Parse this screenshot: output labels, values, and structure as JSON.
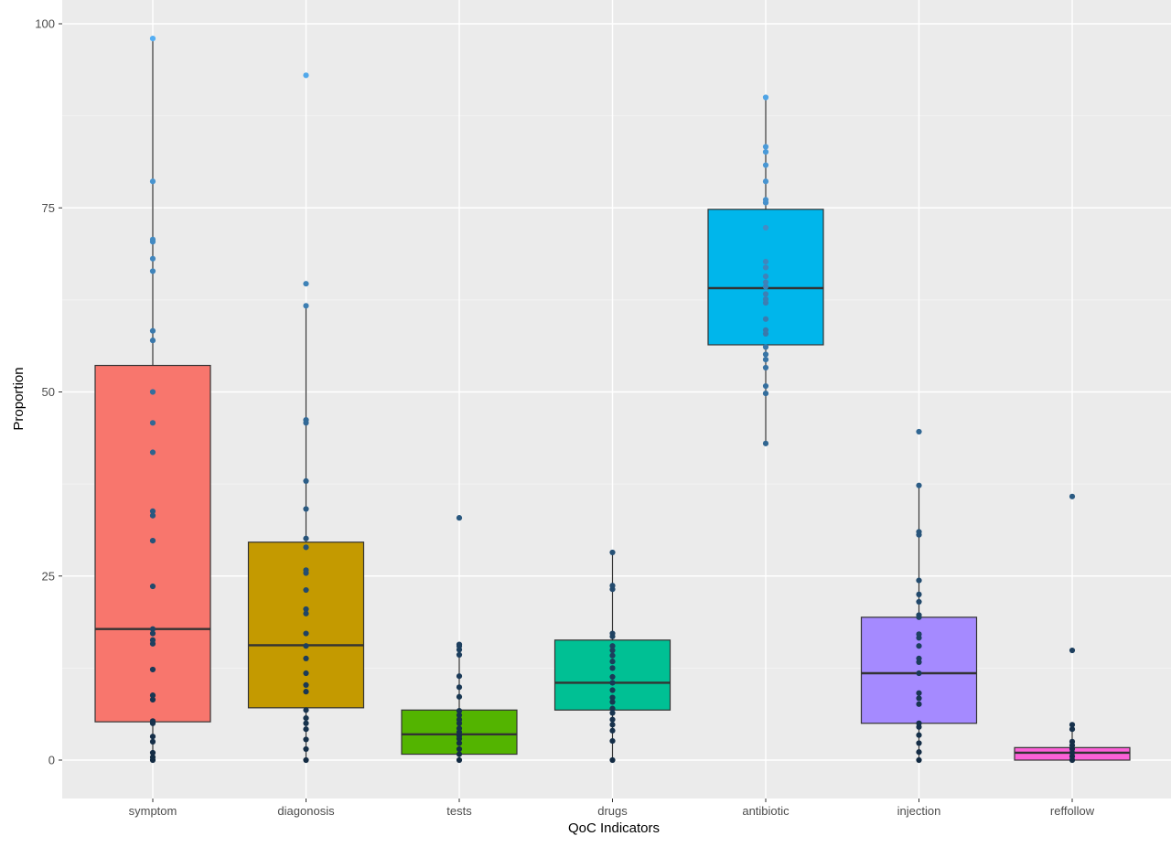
{
  "chart_data": {
    "type": "boxplot",
    "title": "",
    "xlabel": "QoC Indicators",
    "ylabel": "Proportion",
    "ylim": [
      -5,
      101
    ],
    "yticks": [
      0,
      25,
      50,
      75,
      100
    ],
    "grid": true,
    "legend": "none",
    "categories": [
      "symptom",
      "diagonosis",
      "tests",
      "drugs",
      "antibiotic",
      "injection",
      "reffollow"
    ],
    "boxes": [
      {
        "name": "symptom",
        "color": "#F8766D",
        "whisker_low": 0,
        "q1": 5.2,
        "median": 17.8,
        "q3": 53.6,
        "whisker_high": 98.0,
        "outliers": []
      },
      {
        "name": "diagonosis",
        "color": "#C49A00",
        "whisker_low": 0,
        "q1": 7.1,
        "median": 15.6,
        "q3": 29.6,
        "whisker_high": 61.7,
        "outliers": [
          64.7,
          93.0
        ]
      },
      {
        "name": "tests",
        "color": "#53B400",
        "whisker_low": 0,
        "q1": 0.8,
        "median": 3.5,
        "q3": 6.8,
        "whisker_high": 15.7,
        "outliers": [
          32.9
        ]
      },
      {
        "name": "drugs",
        "color": "#00C094",
        "whisker_low": 0,
        "q1": 6.8,
        "median": 10.5,
        "q3": 16.3,
        "whisker_high": 28.2,
        "outliers": []
      },
      {
        "name": "antibiotic",
        "color": "#00B6EB",
        "whisker_low": 43.0,
        "q1": 56.4,
        "median": 64.1,
        "q3": 74.8,
        "whisker_high": 90.0,
        "outliers": []
      },
      {
        "name": "injection",
        "color": "#A58AFF",
        "whisker_low": 0,
        "q1": 5.0,
        "median": 11.8,
        "q3": 19.4,
        "whisker_high": 37.3,
        "outliers": [
          44.6
        ]
      },
      {
        "name": "reffollow",
        "color": "#FB61D7",
        "whisker_low": 0,
        "q1": 0.0,
        "median": 1.0,
        "q3": 1.7,
        "whisker_high": 4.2,
        "outliers": [
          14.9,
          35.8
        ]
      }
    ],
    "points": [
      [
        0,
        0.4,
        1.0,
        2.5,
        3.2,
        5.0,
        5.3,
        8.2,
        8.8,
        12.3,
        15.8,
        16.3,
        17.2,
        17.8,
        23.6,
        29.8,
        33.2,
        33.8,
        41.8,
        45.8,
        50.0,
        57.0,
        58.3,
        66.4,
        68.1,
        70.4,
        70.7,
        78.6,
        98.0
      ],
      [
        0,
        1.5,
        2.8,
        4.2,
        5.0,
        5.7,
        6.8,
        9.3,
        10.2,
        11.8,
        13.8,
        15.5,
        17.2,
        19.9,
        20.5,
        23.1,
        25.4,
        25.8,
        28.9,
        30.1,
        34.1,
        37.9,
        45.8,
        46.2,
        61.7,
        64.7,
        93.0
      ],
      [
        0,
        0.8,
        1.5,
        2.3,
        2.9,
        3.3,
        3.8,
        4.3,
        5.0,
        5.5,
        6.1,
        6.7,
        8.6,
        9.9,
        11.4,
        14.3,
        15.0,
        15.5,
        15.7,
        32.9
      ],
      [
        0,
        2.6,
        4.0,
        4.8,
        5.5,
        6.4,
        7.0,
        7.9,
        8.5,
        9.5,
        10.5,
        11.3,
        12.5,
        13.4,
        14.2,
        14.9,
        15.5,
        16.8,
        17.2,
        23.2,
        23.7,
        28.2
      ],
      [
        43.0,
        49.8,
        50.8,
        53.3,
        54.4,
        55.1,
        56.1,
        57.9,
        58.4,
        59.9,
        62.1,
        62.6,
        63.3,
        64.3,
        64.9,
        65.7,
        66.9,
        67.7,
        72.3,
        75.7,
        76.1,
        78.6,
        80.8,
        82.6,
        83.3,
        90.0
      ],
      [
        0,
        1.1,
        2.3,
        3.4,
        4.5,
        5.0,
        7.6,
        8.4,
        9.1,
        11.8,
        13.3,
        13.8,
        15.5,
        16.6,
        17.1,
        19.4,
        19.7,
        21.5,
        22.5,
        24.4,
        30.6,
        31.0,
        37.3,
        44.6
      ],
      [
        0,
        0.5,
        1.0,
        1.5,
        2.0,
        2.5,
        4.2,
        4.8,
        14.9,
        35.8
      ]
    ]
  }
}
